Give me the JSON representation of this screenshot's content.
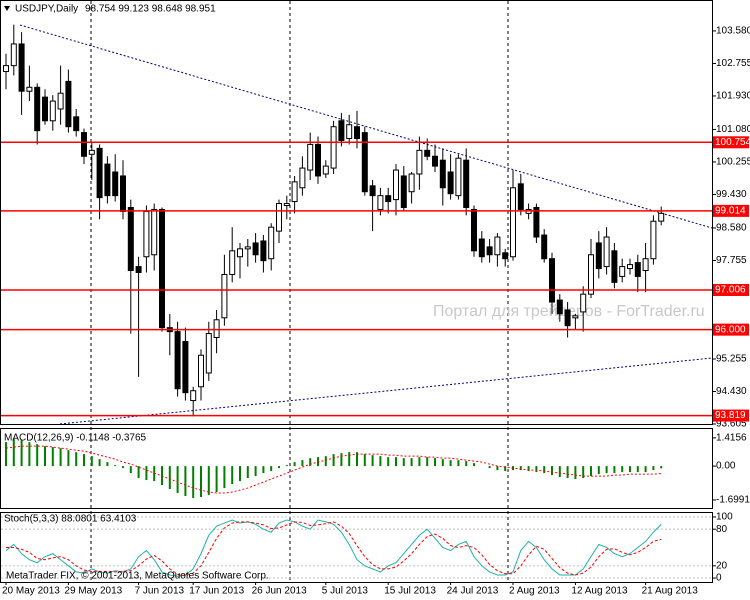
{
  "watermark": "Портал для трейдеров - ForTrader.ru",
  "copyright": "MetaTrader FIX, © 2001-2013, MetaQuotes Software Corp.",
  "chart_data": [
    {
      "type": "candlestick",
      "title": "USDJPY,Daily",
      "subtitle": "98.754 99.123 98.648 98.951",
      "categories": [
        "20 May 2013",
        null,
        null,
        null,
        null,
        null,
        null,
        null,
        "29 May 2013",
        null,
        null,
        null,
        null,
        null,
        null,
        null,
        null,
        "7 Jun 2013",
        null,
        null,
        null,
        null,
        null,
        null,
        "17 Jun 2013",
        null,
        null,
        null,
        null,
        null,
        null,
        null,
        "26 Jun 2013",
        null,
        null,
        null,
        null,
        null,
        null,
        null,
        null,
        "5 Jul 2013",
        null,
        null,
        null,
        null,
        null,
        null,
        null,
        "15 Jul 2013",
        null,
        null,
        null,
        null,
        null,
        null,
        null,
        "24 Jul 2013",
        null,
        null,
        null,
        null,
        null,
        null,
        null,
        "2 Aug 2013",
        null,
        null,
        null,
        null,
        null,
        null,
        null,
        "12 Aug 2013",
        null,
        null,
        null,
        null,
        null,
        null,
        null,
        null,
        "21 Aug 2013",
        null,
        null
      ],
      "open": [
        102.55,
        102.7,
        103.25,
        102.05,
        102.15,
        101.9,
        101.3,
        101.6,
        102.3,
        101.4,
        101.0,
        100.45,
        100.6,
        100.2,
        100.0,
        99.9,
        99.1,
        97.6,
        97.85,
        97.9,
        99.05,
        96.05,
        95.95,
        95.7,
        94.2,
        94.55,
        94.9,
        95.8,
        96.3,
        97.4,
        97.85,
        98.05,
        98.2,
        98.25,
        97.8,
        98.5,
        99.15,
        99.25,
        99.6,
        100.05,
        100.7,
        99.95,
        100.1,
        101.3,
        100.85,
        101.15,
        101.0,
        99.65,
        99.05,
        99.4,
        99.3,
        99.9,
        99.5,
        99.95,
        100.55,
        100.4,
        100.3,
        100.0,
        99.4,
        100.3,
        99.05,
        98.3,
        98.1,
        97.9,
        97.95,
        97.85,
        99.7,
        98.95,
        99.1,
        98.4,
        97.8,
        96.75,
        96.5,
        96.3,
        96.45,
        96.9,
        98.2,
        97.6,
        98.0,
        97.35,
        97.55,
        97.7,
        97.5,
        97.8,
        98.754
      ],
      "high": [
        103.0,
        103.74,
        103.55,
        102.7,
        102.25,
        102.1,
        101.95,
        102.7,
        102.6,
        101.6,
        101.1,
        100.75,
        100.7,
        100.4,
        100.45,
        100.3,
        99.3,
        97.85,
        99.15,
        99.2,
        99.1,
        96.4,
        96.2,
        96.05,
        94.55,
        95.5,
        96.2,
        96.5,
        97.9,
        98.6,
        98.2,
        98.3,
        98.45,
        98.4,
        98.7,
        99.3,
        99.4,
        99.9,
        100.4,
        101.0,
        100.9,
        100.3,
        101.3,
        101.5,
        101.45,
        101.55,
        101.15,
        99.8,
        99.6,
        99.6,
        100.2,
        100.15,
        100.0,
        100.9,
        100.85,
        100.7,
        100.6,
        100.45,
        100.45,
        100.6,
        99.15,
        98.5,
        98.3,
        98.45,
        98.05,
        100.05,
        99.95,
        99.2,
        99.2,
        98.55,
        97.95,
        96.9,
        96.7,
        96.4,
        97.1,
        98.3,
        98.5,
        98.6,
        98.2,
        97.8,
        97.8,
        97.9,
        98.2,
        98.9,
        99.123
      ],
      "low": [
        102.1,
        102.45,
        101.45,
        101.8,
        100.7,
        101.2,
        101.05,
        101.2,
        101.0,
        100.9,
        100.2,
        99.8,
        98.8,
        99.2,
        99.25,
        98.8,
        95.9,
        94.8,
        97.45,
        97.5,
        95.95,
        95.35,
        94.3,
        94.2,
        93.8,
        94.2,
        94.7,
        95.4,
        96.1,
        97.2,
        97.3,
        97.6,
        97.7,
        97.45,
        97.5,
        98.2,
        98.8,
        98.95,
        99.4,
        99.8,
        99.7,
        99.85,
        99.95,
        100.65,
        100.7,
        100.6,
        99.4,
        98.5,
        98.9,
        98.95,
        98.9,
        99.0,
        99.2,
        99.55,
        100.3,
        100.0,
        99.15,
        99.3,
        99.3,
        98.9,
        97.85,
        97.7,
        97.7,
        97.6,
        97.6,
        97.75,
        98.9,
        98.8,
        98.2,
        97.7,
        96.4,
        96.2,
        95.8,
        96.0,
        95.95,
        96.8,
        97.3,
        97.4,
        97.05,
        97.2,
        97.4,
        96.95,
        96.95,
        97.65,
        98.648
      ],
      "close": [
        102.7,
        103.25,
        102.05,
        102.15,
        101.05,
        101.3,
        101.8,
        102.0,
        101.15,
        101.05,
        100.4,
        100.55,
        99.35,
        99.4,
        99.4,
        99.0,
        97.5,
        97.45,
        99.0,
        99.05,
        96.05,
        95.95,
        94.5,
        94.4,
        94.45,
        95.35,
        95.9,
        96.25,
        97.4,
        98.0,
        98.05,
        98.1,
        97.9,
        97.75,
        98.6,
        99.2,
        99.2,
        99.75,
        100.1,
        100.7,
        99.9,
        100.15,
        101.15,
        100.8,
        101.2,
        100.85,
        99.5,
        99.4,
        99.4,
        99.25,
        100.05,
        99.1,
        99.95,
        100.55,
        100.4,
        100.15,
        99.6,
        99.45,
        100.35,
        99.1,
        98.0,
        97.85,
        97.9,
        98.35,
        97.8,
        99.6,
        99.05,
        99.05,
        98.35,
        97.8,
        96.7,
        96.4,
        96.1,
        96.35,
        96.9,
        97.9,
        97.55,
        98.35,
        97.2,
        97.6,
        97.65,
        97.35,
        97.8,
        98.75,
        98.951
      ],
      "up_color": "#ffffff",
      "down_color": "#000000",
      "ylim": [
        93.605,
        104.34
      ],
      "yticks": [
        {
          "value": 103.58,
          "label": "103.580"
        },
        102.755,
        {
          "value": 101.93,
          "label": "101.930"
        },
        {
          "value": 101.08,
          "label": "101.080"
        },
        100.255,
        {
          "value": 99.43,
          "label": "99.430"
        },
        {
          "value": 98.58,
          "label": "98.580"
        },
        97.755,
        95.255,
        {
          "value": 94.43,
          "label": "94.430"
        },
        93.605
      ],
      "levels": [
        100.754,
        99.014,
        97.006,
        {
          "value": 96,
          "label": "96.000"
        },
        93.819
      ],
      "level_color": "#ff0000"
    },
    {
      "type": "macd",
      "title": "MACD(12,26,9) -0.1148 -0.3765",
      "histogram": {
        "color": "#008000",
        "values": [
          1.2,
          1.35,
          1.3,
          1.2,
          1.1,
          1.0,
          0.95,
          0.9,
          0.8,
          0.7,
          0.6,
          0.5,
          0.35,
          0.2,
          0.05,
          -0.1,
          -0.35,
          -0.6,
          -0.7,
          -0.75,
          -0.95,
          -1.15,
          -1.35,
          -1.5,
          -1.6,
          -1.55,
          -1.45,
          -1.3,
          -1.1,
          -0.9,
          -0.75,
          -0.6,
          -0.5,
          -0.35,
          -0.25,
          -0.1,
          0.05,
          0.2,
          0.3,
          0.4,
          0.45,
          0.5,
          0.6,
          0.65,
          0.7,
          0.7,
          0.6,
          0.55,
          0.5,
          0.45,
          0.45,
          0.4,
          0.4,
          0.45,
          0.45,
          0.4,
          0.35,
          0.3,
          0.3,
          0.25,
          0.15,
          0.0,
          -0.1,
          -0.2,
          -0.25,
          -0.2,
          -0.2,
          -0.25,
          -0.3,
          -0.35,
          -0.45,
          -0.55,
          -0.6,
          -0.65,
          -0.6,
          -0.5,
          -0.4,
          -0.35,
          -0.35,
          -0.3,
          -0.3,
          -0.3,
          -0.3,
          -0.2,
          -0.1148
        ]
      },
      "signal": {
        "color": "#ff0000",
        "values": [
          0.9,
          0.95,
          1.0,
          1.0,
          1.0,
          1.0,
          0.95,
          0.9,
          0.85,
          0.8,
          0.75,
          0.65,
          0.55,
          0.45,
          0.35,
          0.2,
          0.1,
          -0.05,
          -0.2,
          -0.35,
          -0.5,
          -0.65,
          -0.8,
          -0.95,
          -1.1,
          -1.2,
          -1.3,
          -1.35,
          -1.35,
          -1.3,
          -1.2,
          -1.1,
          -0.95,
          -0.8,
          -0.65,
          -0.5,
          -0.35,
          -0.2,
          -0.05,
          0.1,
          0.2,
          0.3,
          0.4,
          0.5,
          0.55,
          0.6,
          0.6,
          0.6,
          0.6,
          0.55,
          0.55,
          0.5,
          0.5,
          0.5,
          0.45,
          0.45,
          0.4,
          0.4,
          0.35,
          0.3,
          0.25,
          0.2,
          0.1,
          0.0,
          -0.05,
          -0.1,
          -0.15,
          -0.2,
          -0.2,
          -0.25,
          -0.3,
          -0.35,
          -0.4,
          -0.45,
          -0.5,
          -0.5,
          -0.5,
          -0.5,
          -0.45,
          -0.45,
          -0.4,
          -0.4,
          -0.4,
          -0.4,
          -0.3765
        ]
      },
      "ylim": [
        -2.1,
        1.86
      ],
      "yticks": [
        1.4156,
        {
          "value": 0,
          "label": "0.00"
        },
        -1.6991
      ]
    },
    {
      "type": "stochastic",
      "title": "Stoch(5,3,3) 88.0801 63.4103",
      "main": {
        "color": "#20b2aa",
        "values": [
          45,
          55,
          40,
          30,
          25,
          35,
          40,
          30,
          20,
          10,
          8,
          15,
          10,
          8,
          12,
          10,
          15,
          35,
          45,
          30,
          10,
          5,
          3,
          5,
          15,
          40,
          70,
          85,
          90,
          95,
          90,
          92,
          88,
          80,
          75,
          90,
          95,
          92,
          85,
          80,
          95,
          92,
          88,
          75,
          55,
          30,
          20,
          15,
          10,
          20,
          25,
          40,
          55,
          70,
          80,
          65,
          50,
          45,
          55,
          60,
          35,
          20,
          10,
          5,
          5,
          10,
          45,
          60,
          50,
          30,
          15,
          5,
          5,
          5,
          15,
          35,
          55,
          50,
          40,
          35,
          40,
          50,
          60,
          75,
          88.0801
        ]
      },
      "signal": {
        "color": "#ff0000",
        "values": [
          50,
          50,
          47,
          42,
          32,
          30,
          33,
          35,
          30,
          20,
          13,
          11,
          11,
          11,
          10,
          11,
          12,
          20,
          31,
          37,
          28,
          15,
          6,
          4,
          8,
          20,
          42,
          65,
          82,
          90,
          92,
          92,
          90,
          87,
          81,
          82,
          87,
          92,
          91,
          86,
          87,
          89,
          92,
          85,
          73,
          53,
          35,
          22,
          15,
          15,
          18,
          28,
          40,
          55,
          68,
          72,
          65,
          53,
          50,
          53,
          50,
          38,
          22,
          12,
          7,
          7,
          20,
          38,
          52,
          47,
          32,
          17,
          8,
          5,
          8,
          18,
          35,
          47,
          48,
          42,
          38,
          42,
          50,
          60,
          63.4103
        ]
      },
      "ylim": [
        -6.5,
        106.5
      ],
      "yticks": [
        100,
        80,
        20,
        0
      ],
      "grid": true
    }
  ]
}
